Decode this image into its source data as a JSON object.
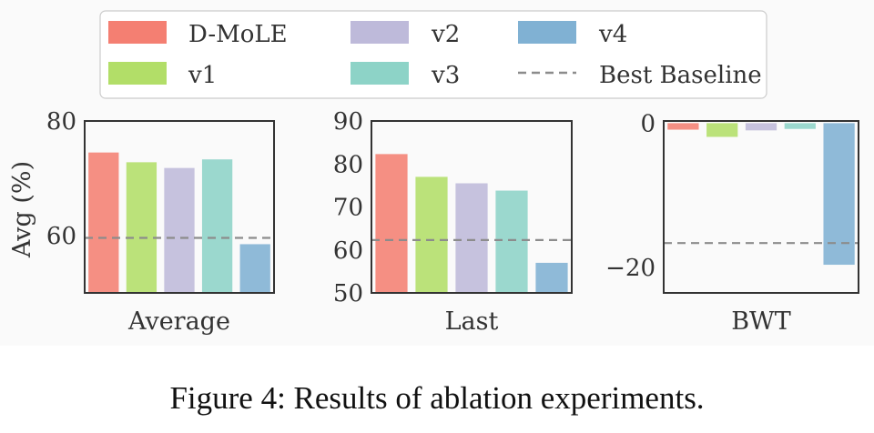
{
  "caption": "Figure 4: Results of ablation experiments.",
  "ylabel": "Avg (%)",
  "legend": [
    {
      "label": "D-MoLE",
      "color": "#f47f72",
      "kind": "bar"
    },
    {
      "label": "v1",
      "color": "#b2de68",
      "kind": "bar"
    },
    {
      "label": "v2",
      "color": "#bebada",
      "kind": "bar"
    },
    {
      "label": "v3",
      "color": "#8dd3c7",
      "kind": "bar"
    },
    {
      "label": "v4",
      "color": "#80b1d3",
      "kind": "bar"
    },
    {
      "label": "Best Baseline",
      "color": "#8c8c8c",
      "kind": "dashed-line"
    }
  ],
  "chart_data": [
    {
      "type": "bar",
      "xlabel": "Average",
      "categories": [
        "D-MoLE",
        "v1",
        "v2",
        "v3",
        "v4"
      ],
      "values": [
        74.5,
        72.8,
        71.8,
        73.3,
        58.5
      ],
      "ylim": [
        50,
        80
      ],
      "yticks": [
        60,
        80
      ],
      "baseline": 59.6
    },
    {
      "type": "bar",
      "xlabel": "Last",
      "categories": [
        "D-MoLE",
        "v1",
        "v2",
        "v3",
        "v4"
      ],
      "values": [
        82.3,
        77.0,
        75.5,
        73.8,
        57.0
      ],
      "ylim": [
        50,
        90
      ],
      "yticks": [
        50,
        60,
        70,
        80,
        90
      ],
      "baseline": 62.3
    },
    {
      "type": "bar",
      "xlabel": "BWT",
      "categories": [
        "D-MoLE",
        "v1",
        "v2",
        "v3",
        "v4"
      ],
      "values": [
        -0.9,
        -1.9,
        -1.0,
        -0.8,
        -19.6
      ],
      "ylim": [
        -23.5,
        0.3
      ],
      "yticks": [
        0,
        -20
      ],
      "ytick_labels": [
        "0",
        "−20"
      ],
      "baseline": -16.6
    }
  ]
}
